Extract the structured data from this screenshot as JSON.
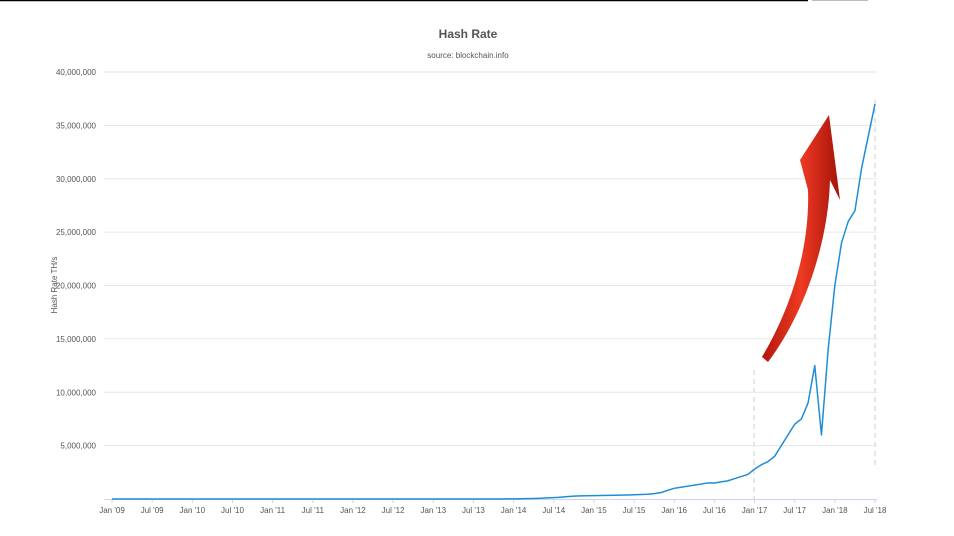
{
  "chart_data": {
    "type": "line",
    "title": "Hash Rate",
    "subtitle": "source: blockchain.info",
    "y_label": "Hash Rate TH/s",
    "color": "#1f8dd6",
    "grid": true,
    "categories": [
      "Jan '09",
      null,
      null,
      null,
      null,
      null,
      "Jul '09",
      null,
      null,
      null,
      null,
      null,
      "Jan '10",
      null,
      null,
      null,
      null,
      null,
      "Jul '10",
      null,
      null,
      null,
      null,
      null,
      "Jan '11",
      null,
      null,
      null,
      null,
      null,
      "Jul '11",
      null,
      null,
      null,
      null,
      null,
      "Jan '12",
      null,
      null,
      null,
      null,
      null,
      "Jul '12",
      null,
      null,
      null,
      null,
      null,
      "Jan '13",
      null,
      null,
      null,
      null,
      null,
      "Jul '13",
      null,
      null,
      null,
      null,
      null,
      "Jan '14",
      null,
      null,
      null,
      null,
      null,
      "Jul '14",
      null,
      null,
      null,
      null,
      null,
      "Jan '15",
      null,
      null,
      null,
      null,
      null,
      "Jul '15",
      null,
      null,
      null,
      null,
      null,
      "Jan '16",
      null,
      null,
      null,
      null,
      null,
      "Jul '16",
      null,
      null,
      null,
      null,
      null,
      "Jan '17",
      null,
      null,
      null,
      null,
      null,
      "Jul '17",
      null,
      null,
      null,
      null,
      null,
      "Jan '18",
      null,
      null,
      null,
      null,
      null,
      "Jul '18"
    ],
    "values": [
      0,
      0,
      0,
      0,
      0,
      0,
      0,
      0,
      0,
      0,
      0,
      0,
      0,
      0,
      0,
      0,
      0,
      0,
      0,
      0,
      0,
      0,
      0,
      0,
      0,
      0,
      0,
      0,
      0,
      0,
      0,
      0,
      0,
      0,
      0,
      0,
      0,
      0,
      0,
      0,
      0,
      0,
      0,
      0,
      0,
      0,
      0,
      0,
      0,
      0,
      0,
      0,
      0,
      0,
      0,
      0,
      0,
      0,
      0,
      10000,
      15000,
      25000,
      40000,
      50000,
      70000,
      100000,
      130000,
      170000,
      220000,
      270000,
      290000,
      300000,
      320000,
      330000,
      340000,
      350000,
      360000,
      380000,
      400000,
      420000,
      450000,
      500000,
      600000,
      800000,
      1000000,
      1100000,
      1200000,
      1300000,
      1400000,
      1500000,
      1500000,
      1600000,
      1700000,
      1900000,
      2100000,
      2300000,
      2800000,
      3200000,
      3500000,
      4000000,
      5000000,
      6000000,
      7000000,
      7500000,
      9000000,
      12500000,
      6000000,
      14000000,
      20000000,
      24000000,
      26000000,
      27000000,
      31000000,
      34000000,
      37000000
    ],
    "ylim": [
      0,
      40000000
    ],
    "yticks": [
      {
        "value": 5000000,
        "label": "5,000,000"
      },
      {
        "value": 10000000,
        "label": "10,000,000"
      },
      {
        "value": 15000000,
        "label": "15,000,000"
      },
      {
        "value": 20000000,
        "label": "20,000,000"
      },
      {
        "value": 25000000,
        "label": "25,000,000"
      },
      {
        "value": 30000000,
        "label": "30,000,000"
      },
      {
        "value": 35000000,
        "label": "35,000,000"
      },
      {
        "value": 40000000,
        "label": "40,000,000"
      }
    ]
  }
}
